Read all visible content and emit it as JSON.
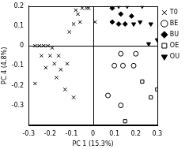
{
  "chart_data": {
    "type": "scatter",
    "x_label": "PC 1 (15.3%)",
    "y_label": "PC 4 (4.8%)",
    "xlim": [
      -0.3,
      0.3
    ],
    "xticks": [
      -0.3,
      -0.2,
      -0.1,
      0,
      0.1,
      0.2,
      0.3
    ],
    "ylim": [
      -0.4,
      0.2
    ],
    "yticks": [
      -0.3,
      -0.2,
      -0.1,
      0,
      0.1,
      0.2
    ],
    "grid": false,
    "legend": "upper right",
    "series": [
      {
        "name": "T0",
        "color": "#000000",
        "marker": "x",
        "values": [
          [
            -0.08,
            0.18
          ],
          [
            -0.05,
            0.19
          ],
          [
            -0.03,
            0.19
          ],
          [
            -0.02,
            0.19
          ],
          [
            -0.07,
            0.16
          ],
          [
            -0.09,
            0.11
          ],
          [
            -0.06,
            0.12
          ],
          [
            -0.11,
            0.07
          ],
          [
            0.01,
            0.12
          ],
          [
            -0.27,
            0.0
          ],
          [
            -0.25,
            0.0
          ],
          [
            -0.23,
            0.0
          ],
          [
            -0.21,
            0.0
          ],
          [
            -0.19,
            -0.01
          ],
          [
            -0.24,
            -0.05
          ],
          [
            -0.2,
            -0.05
          ],
          [
            -0.16,
            -0.05
          ],
          [
            -0.18,
            -0.09
          ],
          [
            -0.12,
            -0.09
          ],
          [
            -0.22,
            -0.11
          ],
          [
            -0.15,
            -0.12
          ],
          [
            -0.17,
            -0.16
          ],
          [
            -0.27,
            -0.19
          ],
          [
            -0.13,
            -0.22
          ],
          [
            -0.09,
            -0.26
          ]
        ]
      },
      {
        "name": "BE",
        "color": "#000000",
        "marker": "open-circle",
        "values": [
          [
            0.13,
            -0.04
          ],
          [
            0.2,
            -0.04
          ],
          [
            0.1,
            -0.1
          ],
          [
            0.14,
            -0.1
          ],
          [
            0.19,
            -0.1
          ],
          [
            0.07,
            -0.25
          ],
          [
            0.13,
            -0.3
          ]
        ]
      },
      {
        "name": "BU",
        "color": "#000000",
        "marker": "diamond",
        "values": [
          [
            0.09,
            0.19
          ],
          [
            0.13,
            0.16
          ],
          [
            0.18,
            0.15
          ],
          [
            0.09,
            0.12
          ],
          [
            0.12,
            0.11
          ],
          [
            0.15,
            0.11
          ]
        ]
      },
      {
        "name": "OE",
        "color": "#000000",
        "marker": "open-square",
        "values": [
          [
            0.23,
            -0.18
          ],
          [
            0.3,
            -0.22
          ],
          [
            0.27,
            -0.26
          ],
          [
            0.15,
            -0.38
          ]
        ]
      },
      {
        "name": "OU",
        "color": "#000000",
        "marker": "triangle-down",
        "values": [
          [
            0.12,
            0.2
          ],
          [
            0.16,
            0.2
          ],
          [
            0.23,
            0.2
          ],
          [
            0.19,
            0.11
          ],
          [
            0.22,
            0.12
          ],
          [
            0.27,
            0.11
          ],
          [
            0.26,
            0.01
          ],
          [
            0.3,
            0.03
          ]
        ]
      }
    ]
  }
}
